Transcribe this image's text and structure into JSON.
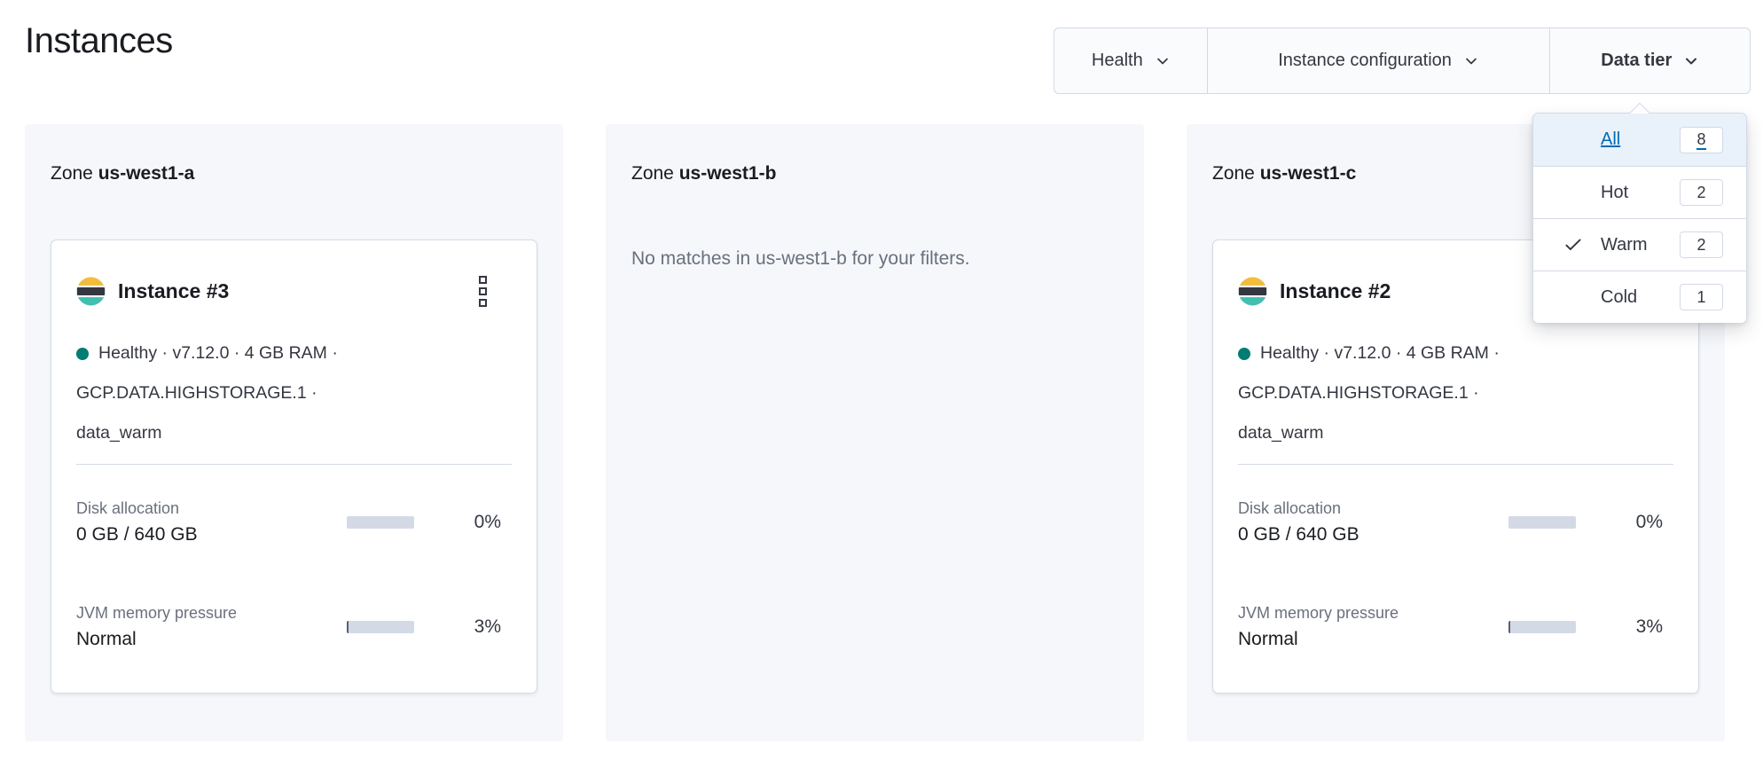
{
  "page": {
    "title": "Instances"
  },
  "filter_bar": {
    "buttons": [
      {
        "label": "Health"
      },
      {
        "label": "Instance configuration"
      },
      {
        "label": "Data tier",
        "open": true
      }
    ]
  },
  "data_tier_menu": {
    "items": [
      {
        "label": "All",
        "count": "8",
        "highlighted": true,
        "link_style": true
      },
      {
        "label": "Hot",
        "count": "2"
      },
      {
        "label": "Warm",
        "count": "2",
        "checked": true
      },
      {
        "label": "Cold",
        "count": "1"
      }
    ]
  },
  "zones": [
    {
      "zone_label": "Zone",
      "zone_name": "us-west1-a",
      "card": {
        "title": "Instance #3",
        "health_status": "Healthy",
        "health_lines": [
          "Healthy · v7.12.0 · 4 GB RAM ·",
          "GCP.DATA.HIGHSTORAGE.1 ·",
          "data_warm"
        ],
        "metrics": [
          {
            "label": "Disk allocation",
            "value": "0 GB / 640 GB",
            "percent": "0%",
            "fill": 0
          },
          {
            "label": "JVM memory pressure",
            "value": "Normal",
            "percent": "3%",
            "fill": 3
          }
        ]
      }
    },
    {
      "zone_label": "Zone",
      "zone_name": "us-west1-b",
      "empty_message": "No matches in us-west1-b for your filters."
    },
    {
      "zone_label": "Zone",
      "zone_name": "us-west1-c",
      "card": {
        "title": "Instance #2",
        "health_status": "Healthy",
        "health_lines": [
          "Healthy · v7.12.0 · 4 GB RAM ·",
          "GCP.DATA.HIGHSTORAGE.1 ·",
          "data_warm"
        ],
        "metrics": [
          {
            "label": "Disk allocation",
            "value": "0 GB / 640 GB",
            "percent": "0%",
            "fill": 0
          },
          {
            "label": "JVM memory pressure",
            "value": "Normal",
            "percent": "3%",
            "fill": 3
          }
        ]
      }
    }
  ],
  "colors": {
    "link": "#006BB4",
    "highlight-row": "#e9f1fa",
    "health-dot": "#017D73",
    "logo-yellow": "#f2bc3c",
    "logo-dark": "#343741",
    "logo-teal": "#43bfb2",
    "bar-track": "#d3dae6",
    "bar-fill": "#5a606f",
    "panel-bg": "#f5f7fa",
    "border": "#d3dae6",
    "text": "#343741",
    "text-dark": "#1a1c21",
    "text-subdued": "#69707d",
    "filter-bg": "#fafbfd"
  }
}
